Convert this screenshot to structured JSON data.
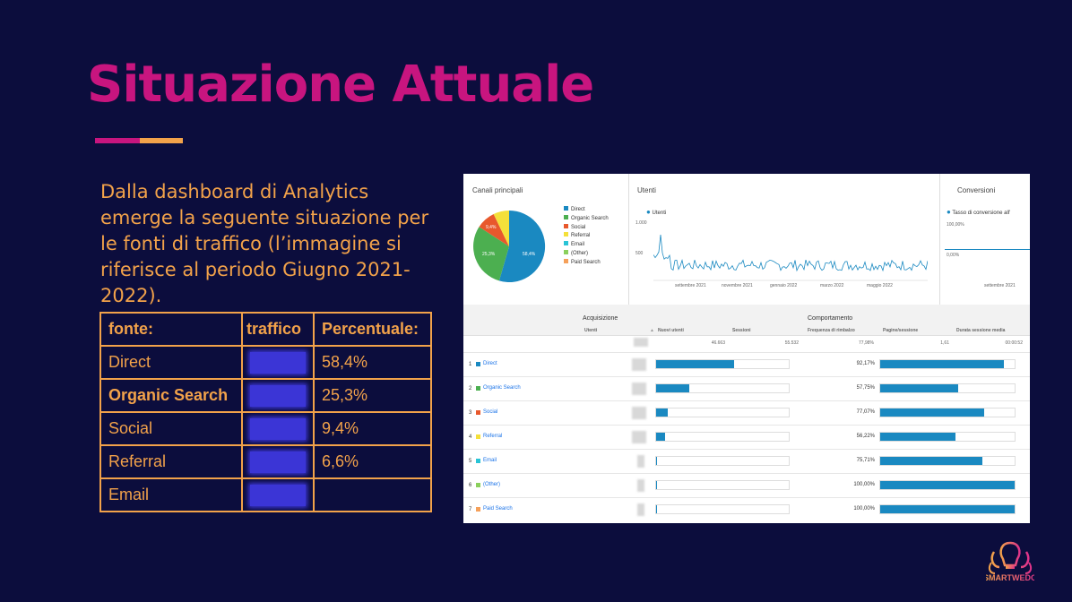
{
  "slide": {
    "title": "Situazione Attuale",
    "intro": "Dalla dashboard di Analytics emerge la seguente situazione per le fonti di traffico (l’immagine si riferisce al periodo Giugno 2021-2022).",
    "logo_text": "SMARTWEDO"
  },
  "table": {
    "headers": [
      "fonte:",
      "traffico",
      "Percentuale:"
    ],
    "rows": [
      {
        "source": "Direct",
        "percent": "58,4%"
      },
      {
        "source": "Organic Search",
        "percent": "25,3%"
      },
      {
        "source": "Social",
        "percent": "9,4%"
      },
      {
        "source": "Referral",
        "percent": "6,6%"
      },
      {
        "source": "Email",
        "percent": ""
      }
    ]
  },
  "dashboard": {
    "channels": {
      "title": "Canali principali",
      "legend": [
        "Direct",
        "Organic Search",
        "Social",
        "Referral",
        "Email",
        "(Other)",
        "Paid Search"
      ],
      "slice_labels": [
        "58,4%",
        "25,3%",
        "9,4%"
      ]
    },
    "users": {
      "title": "Utenti",
      "series": "Utenti",
      "y_ticks": [
        "1.000",
        "500"
      ],
      "x_ticks": [
        "settembre 2021",
        "novembre 2021",
        "gennaio 2022",
        "marzo 2022",
        "maggio 2022"
      ]
    },
    "conversions": {
      "title": "Conversioni",
      "series": "Tasso di conversione all'",
      "y_ticks": [
        "100,00%",
        "0,00%"
      ],
      "x_ticks": [
        "settembre 2021"
      ]
    },
    "groups": [
      "Acquisizione",
      "Comportamento"
    ],
    "columns": [
      "Utenti",
      "Nuovi utenti",
      "Sessioni",
      "Frequenza di rimbalzo",
      "Pagine/sessione",
      "Durata sessione media"
    ],
    "totals": {
      "new_users": "46.663",
      "sessions": "55.532",
      "bounce": "77,98%",
      "pages": "1,61",
      "duration": "00:00:52"
    },
    "rows": [
      {
        "rank": "1",
        "name": "Direct",
        "new_users_share": 0.59,
        "bounce": "92,17%",
        "bounce_share": 0.92
      },
      {
        "rank": "2",
        "name": "Organic Search",
        "new_users_share": 0.25,
        "bounce": "57,75%",
        "bounce_share": 0.58
      },
      {
        "rank": "3",
        "name": "Social",
        "new_users_share": 0.09,
        "bounce": "77,07%",
        "bounce_share": 0.77
      },
      {
        "rank": "4",
        "name": "Referral",
        "new_users_share": 0.07,
        "bounce": "56,22%",
        "bounce_share": 0.56
      },
      {
        "rank": "5",
        "name": "Email",
        "new_users_share": 0.005,
        "bounce": "75,71%",
        "bounce_share": 0.76
      },
      {
        "rank": "6",
        "name": "(Other)",
        "new_users_share": 0.003,
        "bounce": "100,00%",
        "bounce_share": 1.0
      },
      {
        "rank": "7",
        "name": "Paid Search",
        "new_users_share": 0.002,
        "bounce": "100,00%",
        "bounce_share": 1.0
      }
    ]
  },
  "colors": {
    "title": "#c8157f",
    "accent": "#f2a24a",
    "background": "#0c0d3d",
    "channels": [
      "#1a89c1",
      "#4caf50",
      "#e8582c",
      "#f4e03a",
      "#29c4d6",
      "#8bd05c",
      "#f5a05a"
    ]
  }
}
